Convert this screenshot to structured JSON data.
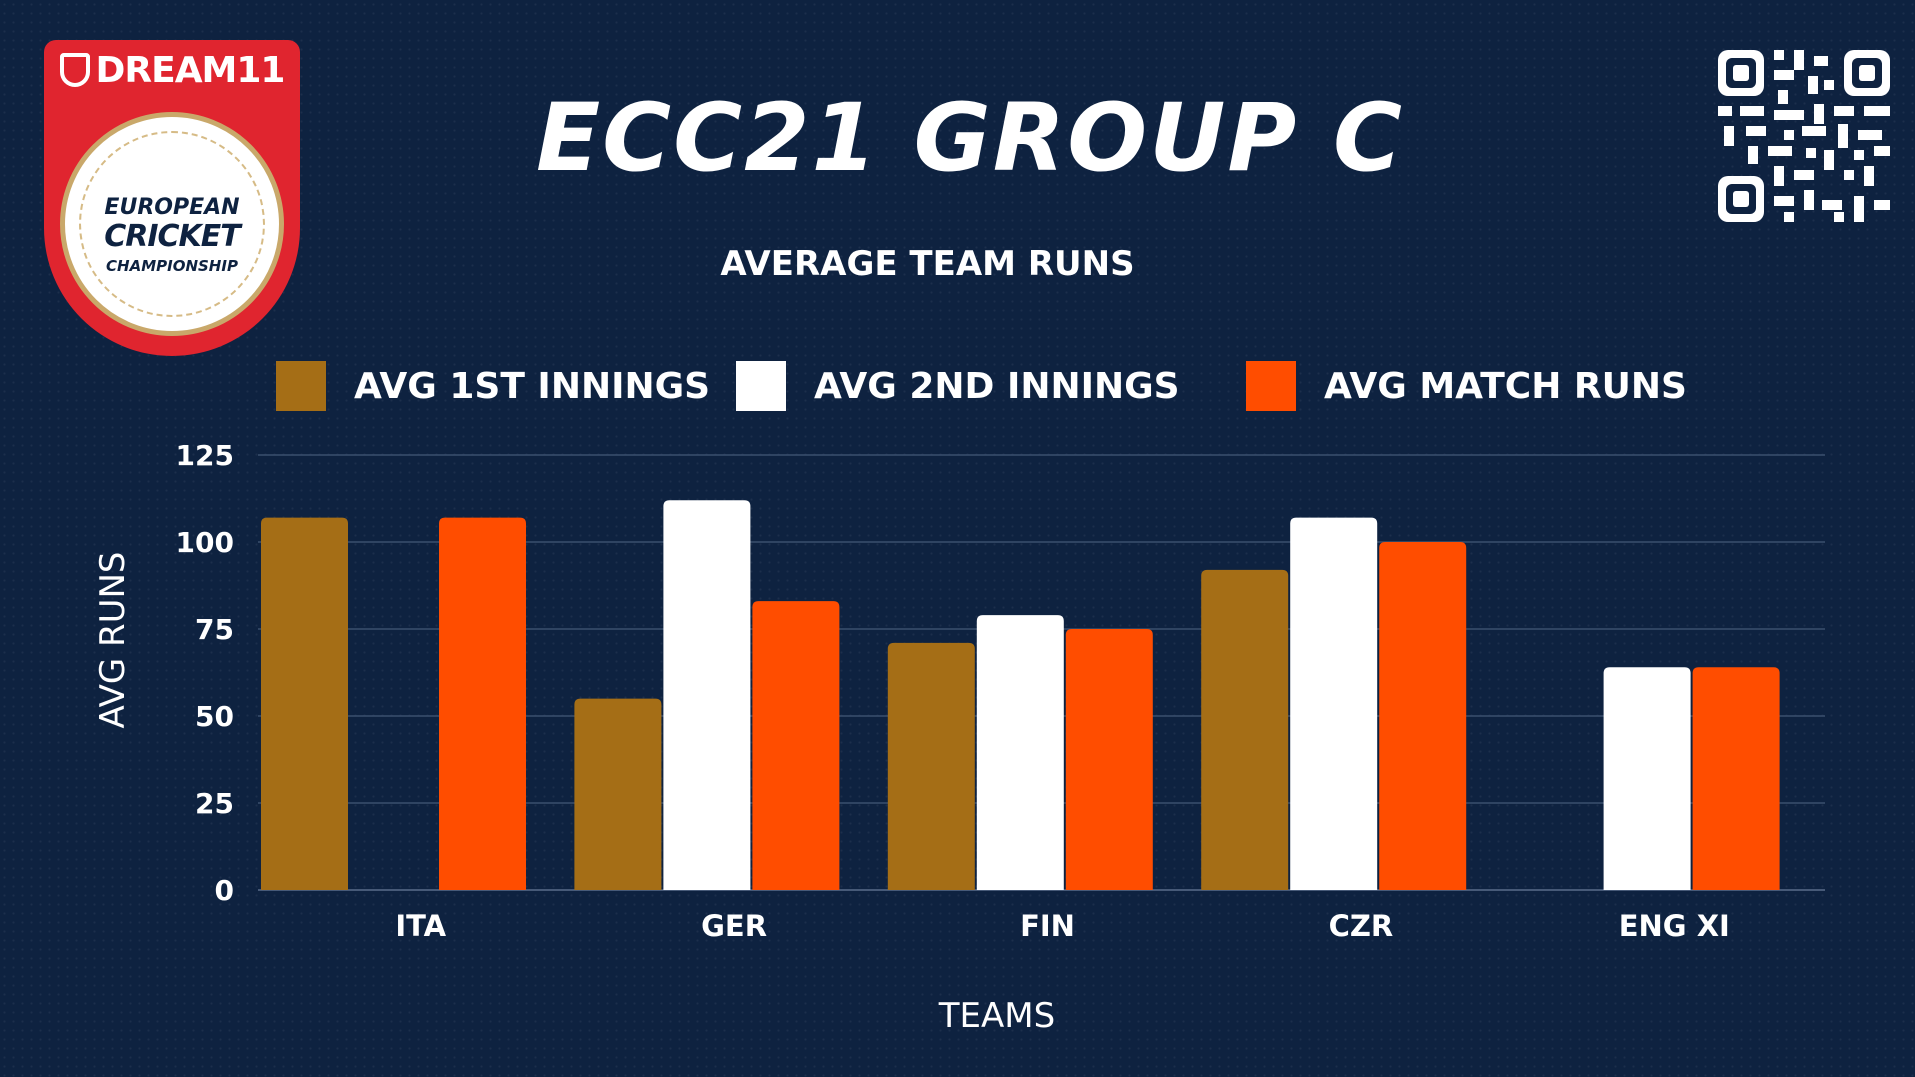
{
  "logo": {
    "brand": "DREAM11",
    "line1": "EUROPEAN",
    "line2": "CRICKET",
    "line3": "CHAMPIONSHIP"
  },
  "header": {
    "title": "ECC21 GROUP C",
    "subtitle": "AVERAGE TEAM RUNS"
  },
  "colors": {
    "background": "#0e2240",
    "series1": "#a56e16",
    "series2": "#ffffff",
    "series3": "#ff4d00",
    "gridline": "#3a4f6e"
  },
  "chart_data": {
    "type": "bar",
    "title": "AVERAGE TEAM RUNS",
    "xlabel": "TEAMS",
    "ylabel": "AVG RUNS",
    "ylim": [
      0,
      125
    ],
    "yticks": [
      0,
      25,
      50,
      75,
      100,
      125
    ],
    "grid": true,
    "legend_position": "top",
    "categories": [
      "ITA",
      "GER",
      "FIN",
      "CZR",
      "ENG XI"
    ],
    "series": [
      {
        "name": "AVG 1ST INNINGS",
        "color": "#a56e16",
        "values": [
          107,
          55,
          71,
          92,
          0
        ]
      },
      {
        "name": "AVG 2ND INNINGS",
        "color": "#ffffff",
        "values": [
          0,
          112,
          79,
          107,
          64
        ]
      },
      {
        "name": "AVG MATCH RUNS",
        "color": "#ff4d00",
        "values": [
          107,
          83,
          75,
          100,
          64
        ]
      }
    ]
  }
}
